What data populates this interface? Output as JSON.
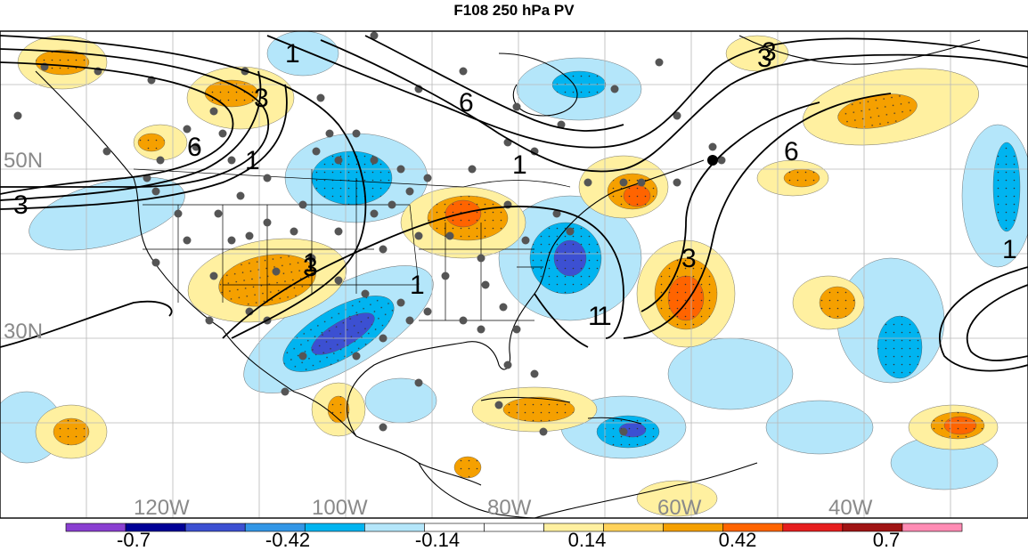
{
  "title": "F108 250 hPa PV",
  "lat_labels": [
    "50N",
    "30N"
  ],
  "lon_labels": [
    "120W",
    "100W",
    "80W",
    "60W",
    "40W"
  ],
  "contour_labels": [
    "1",
    "3",
    "6",
    "3",
    "6",
    "1",
    "1",
    "3",
    "1",
    "1",
    "3",
    "6",
    "3",
    "1",
    "3",
    "1",
    "1"
  ],
  "colorbar": {
    "labels": [
      "-0.7",
      "-0.42",
      "-0.14",
      "0.14",
      "0.42",
      "0.7"
    ],
    "colors": [
      "#8a3fd1",
      "#000096",
      "#3c50d2",
      "#3296e6",
      "#00b4f0",
      "#b4e6fa",
      "#ffffff",
      "#ffffff",
      "#fff0a0",
      "#ffd25a",
      "#f5a000",
      "#ff6400",
      "#e61e1e",
      "#a01414",
      "#ff8cb4"
    ]
  },
  "palette": {
    "light_blue": "#b4e6fa",
    "mid_blue": "#00b4f0",
    "dark_blue": "#3c50d2",
    "light_yellow": "#fff0a0",
    "orange": "#f5a000",
    "red_orange": "#ff6400",
    "red": "#e61e1e"
  }
}
